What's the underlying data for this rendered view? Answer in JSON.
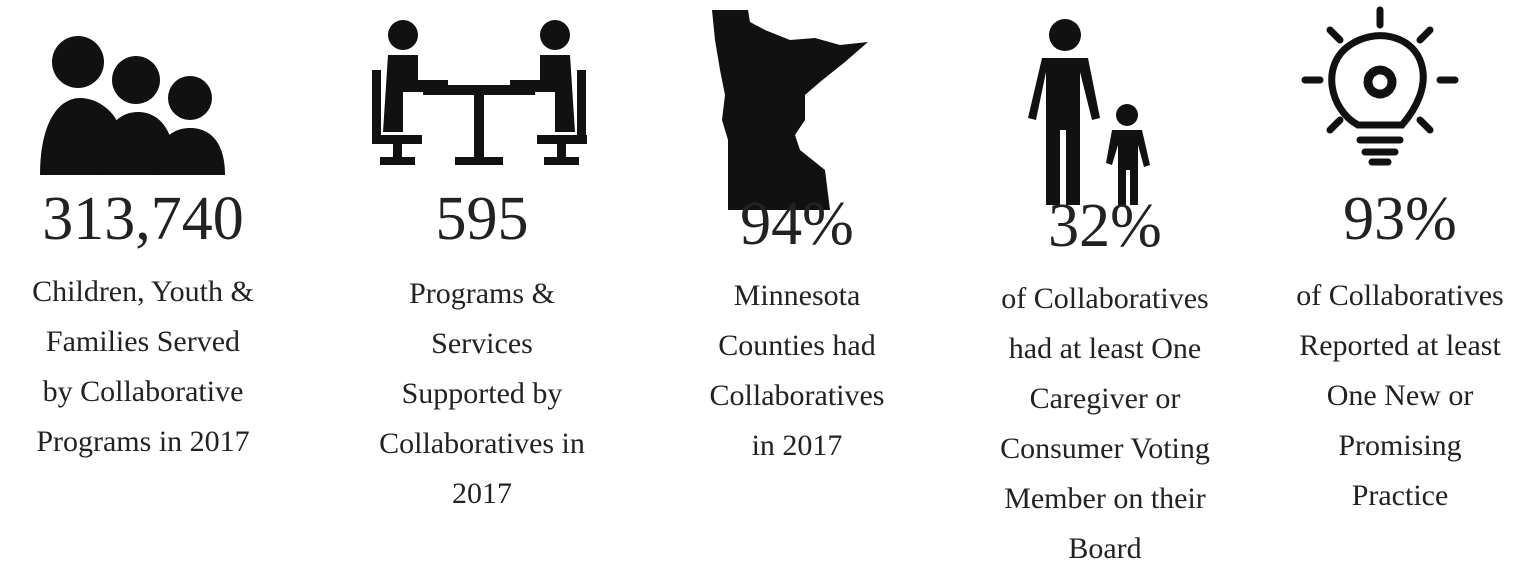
{
  "stats": [
    {
      "value": "313,740",
      "description": [
        "Children, Youth &",
        "Families Served",
        "by Collaborative",
        "Programs in 2017"
      ]
    },
    {
      "value": "595",
      "description": [
        "Programs &",
        "Services",
        "Supported by",
        "Collaboratives in",
        "2017"
      ]
    },
    {
      "value": "94%",
      "description": [
        "Minnesota",
        "Counties had",
        "Collaboratives",
        "in 2017"
      ]
    },
    {
      "value": "32%",
      "description": [
        "of Collaboratives",
        "had at least One",
        "Caregiver or",
        "Consumer Voting",
        "Member on their",
        "Board"
      ]
    },
    {
      "value": "93%",
      "description": [
        "of Collaboratives",
        "Reported at least",
        "One New or",
        "Promising",
        "Practice"
      ]
    }
  ]
}
